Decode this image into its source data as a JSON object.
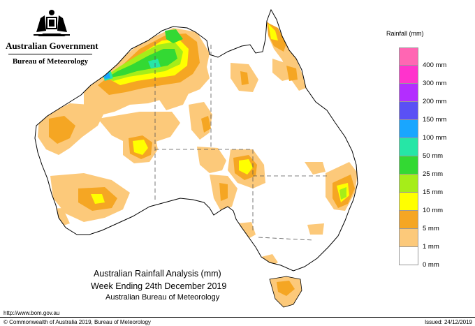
{
  "header": {
    "gov_title": "Australian Government",
    "agency": "Bureau of Meteorology"
  },
  "legend": {
    "title": "Rainfall (mm)",
    "bins": [
      {
        "label": "",
        "color": "#ff66b3"
      },
      {
        "label": "400 mm",
        "color": "#ff33cc"
      },
      {
        "label": "300 mm",
        "color": "#b32dff"
      },
      {
        "label": "200 mm",
        "color": "#5a50f5"
      },
      {
        "label": "150 mm",
        "color": "#19a6ff"
      },
      {
        "label": "100 mm",
        "color": "#26e6a6"
      },
      {
        "label": "50 mm",
        "color": "#33d933"
      },
      {
        "label": "25 mm",
        "color": "#a6ed19"
      },
      {
        "label": "15 mm",
        "color": "#ffff00"
      },
      {
        "label": "10 mm",
        "color": "#f5a623"
      },
      {
        "label": "5 mm",
        "color": "#fcc97a"
      },
      {
        "label": "1 mm",
        "color": "#ffffff"
      },
      {
        "label": "0 mm",
        "color": ""
      }
    ]
  },
  "map_title": {
    "line1": "Australian Rainfall Analysis (mm)",
    "line2": "Week Ending 24th December 2019",
    "line3": "Australian Bureau of Meteorology"
  },
  "footer": {
    "url": "http://www.bom.gov.au",
    "copyright": "© Commonwealth of Australia 2019, Bureau of Meteorology",
    "issued": "Issued: 24/12/2019"
  },
  "colors": {
    "light_orange": "#fcc97a",
    "orange": "#f5a623",
    "yellow": "#ffff00",
    "lime": "#a6ed19",
    "green": "#33d933",
    "teal": "#26e6a6",
    "blue": "#19a6ff"
  }
}
